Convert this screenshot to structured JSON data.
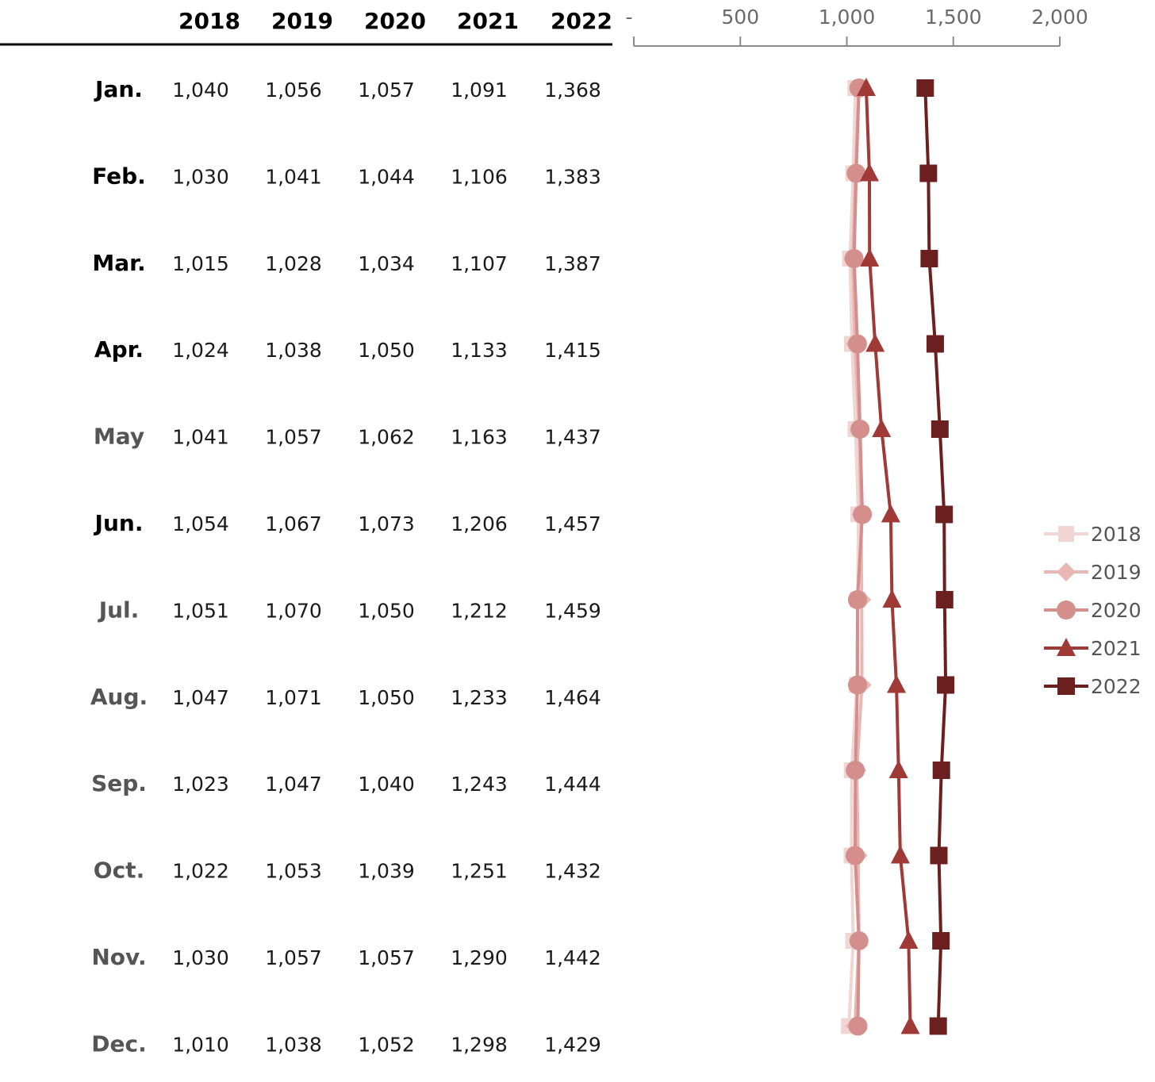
{
  "chart_data": {
    "type": "line",
    "orientation": "vertical-categories",
    "categories": [
      "Jan.",
      "Feb.",
      "Mar.",
      "Apr.",
      "May",
      "Jun.",
      "Jul.",
      "Aug.",
      "Sep.",
      "Oct.",
      "Nov.",
      "Dec."
    ],
    "month_colors": [
      "#000000",
      "#000000",
      "#000000",
      "#000000",
      "#555555",
      "#000000",
      "#555555",
      "#555555",
      "#555555",
      "#555555",
      "#555555",
      "#555555"
    ],
    "series": [
      {
        "name": "2018",
        "marker": "x-square",
        "color": "#f0d5d3",
        "values": [
          1040,
          1030,
          1015,
          1024,
          1041,
          1054,
          1051,
          1047,
          1023,
          1022,
          1030,
          1010
        ],
        "labels": [
          "1,040",
          "1,030",
          "1,015",
          "1,024",
          "1,041",
          "1,054",
          "1,051",
          "1,047",
          "1,023",
          "1,022",
          "1,030",
          "1,010"
        ]
      },
      {
        "name": "2019",
        "marker": "diamond",
        "color": "#e8b7b4",
        "values": [
          1056,
          1041,
          1028,
          1038,
          1057,
          1067,
          1070,
          1071,
          1047,
          1053,
          1057,
          1038
        ],
        "labels": [
          "1,056",
          "1,041",
          "1,028",
          "1,038",
          "1,057",
          "1,067",
          "1,070",
          "1,071",
          "1,047",
          "1,053",
          "1,057",
          "1,038"
        ]
      },
      {
        "name": "2020",
        "marker": "circle",
        "color": "#d48f8c",
        "values": [
          1057,
          1044,
          1034,
          1050,
          1062,
          1073,
          1050,
          1050,
          1040,
          1039,
          1057,
          1052
        ],
        "labels": [
          "1,057",
          "1,044",
          "1,034",
          "1,050",
          "1,062",
          "1,073",
          "1,050",
          "1,050",
          "1,040",
          "1,039",
          "1,057",
          "1,052"
        ]
      },
      {
        "name": "2021",
        "marker": "triangle",
        "color": "#a03a37",
        "values": [
          1091,
          1106,
          1107,
          1133,
          1163,
          1206,
          1212,
          1233,
          1243,
          1251,
          1290,
          1298
        ],
        "labels": [
          "1,091",
          "1,106",
          "1,107",
          "1,133",
          "1,163",
          "1,206",
          "1,212",
          "1,233",
          "1,243",
          "1,251",
          "1,290",
          "1,298"
        ]
      },
      {
        "name": "2022",
        "marker": "square",
        "color": "#6b1f1f",
        "values": [
          1368,
          1383,
          1387,
          1415,
          1437,
          1457,
          1459,
          1464,
          1444,
          1432,
          1442,
          1429
        ],
        "labels": [
          "1,368",
          "1,383",
          "1,387",
          "1,415",
          "1,437",
          "1,457",
          "1,459",
          "1,464",
          "1,444",
          "1,432",
          "1,442",
          "1,429"
        ]
      }
    ],
    "xlim": [
      0,
      2000
    ],
    "ticks": [
      0,
      500,
      1000,
      1500,
      2000
    ],
    "tick_labels": [
      "-",
      "500",
      "1,000",
      "1,500",
      "2,000"
    ],
    "axis_position": "top",
    "legend_position": "right",
    "grid": false
  }
}
